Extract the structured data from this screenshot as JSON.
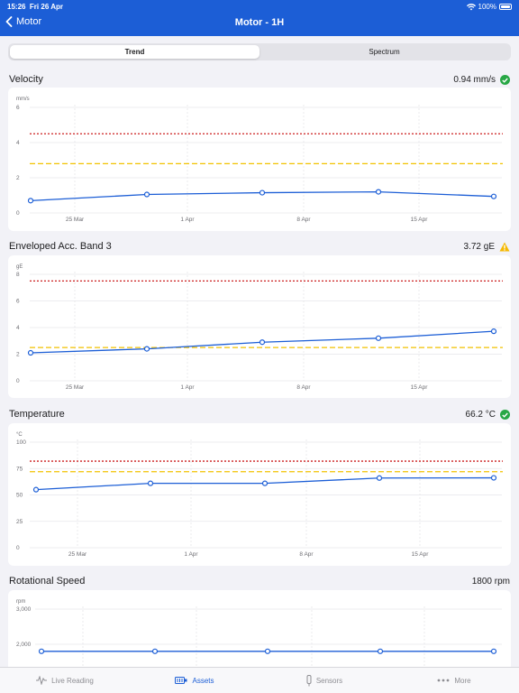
{
  "status_bar": {
    "time": "15:26",
    "date": "Fri 26 Apr",
    "battery": "100%"
  },
  "nav": {
    "back_label": "Motor",
    "title": "Motor - 1H"
  },
  "tabs": [
    {
      "label": "Trend",
      "active": true
    },
    {
      "label": "Spectrum",
      "active": false
    }
  ],
  "sections": {
    "velocity": {
      "title": "Velocity",
      "value": "0.94 mm/s",
      "status": "ok"
    },
    "enveloped": {
      "title": "Enveloped Acc. Band 3",
      "value": "3.72 gE",
      "status": "warning"
    },
    "temperature": {
      "title": "Temperature",
      "value": "66.2 °C",
      "status": "ok"
    },
    "rotational": {
      "title": "Rotational Speed",
      "value": "1800 rpm",
      "status": "none"
    }
  },
  "colors": {
    "line": "#1c5ed6",
    "alarm": "#cc1f1f",
    "alert": "#f2c200",
    "ok": "#28a745",
    "warning": "#f5b800"
  },
  "chart_data": [
    {
      "type": "line",
      "title": "Velocity",
      "ylabel": "mm/s",
      "ylim": [
        0,
        6
      ],
      "yticks": [
        "6",
        "4",
        "2",
        "0"
      ],
      "ytick_values": [
        6,
        4,
        2,
        0
      ],
      "x_tick_labels": [
        "25 Mar",
        "1 Apr",
        "8 Apr",
        "15 Apr"
      ],
      "series": [
        {
          "values": [
            0.7,
            1.05,
            1.15,
            1.2,
            0.94
          ]
        }
      ],
      "alarm_level": 4.5,
      "alert_level": 2.8
    },
    {
      "type": "line",
      "title": "Enveloped Acc. Band 3",
      "ylabel": "gE",
      "ylim": [
        0,
        8
      ],
      "yticks": [
        "8",
        "6",
        "4",
        "2",
        "0"
      ],
      "ytick_values": [
        8,
        6,
        4,
        2,
        0
      ],
      "x_tick_labels": [
        "25 Mar",
        "1 Apr",
        "8 Apr",
        "15 Apr"
      ],
      "series": [
        {
          "values": [
            2.1,
            2.4,
            2.9,
            3.2,
            3.72
          ]
        }
      ],
      "alarm_level": 7.5,
      "alert_level": 2.5
    },
    {
      "type": "line",
      "title": "Temperature",
      "ylabel": "°C",
      "ylim": [
        0,
        100
      ],
      "yticks": [
        "100",
        "75",
        "50",
        "25",
        "0"
      ],
      "ytick_values": [
        100,
        75,
        50,
        25,
        0
      ],
      "x_tick_labels": [
        "25 Mar",
        "1 Apr",
        "8 Apr",
        "15 Apr"
      ],
      "series": [
        {
          "values": [
            55,
            61,
            61,
            66,
            66.2
          ]
        }
      ],
      "alarm_level": 82,
      "alert_level": 72
    },
    {
      "type": "line",
      "title": "Rotational Speed",
      "ylabel": "rpm",
      "ylim": [
        1800,
        3000
      ],
      "yticks": [
        "3,000",
        "2,000"
      ],
      "ytick_values": [
        3000,
        2000
      ],
      "x_tick_labels": [],
      "series": [
        {
          "values": [
            1800,
            1800,
            1800,
            1800,
            1800
          ]
        }
      ]
    }
  ],
  "tabbar": [
    {
      "label": "Live Reading",
      "icon": "waveform-icon",
      "active": false
    },
    {
      "label": "Assets",
      "icon": "assets-icon",
      "active": true
    },
    {
      "label": "Sensors",
      "icon": "sensor-icon",
      "active": false
    },
    {
      "label": "More",
      "icon": "more-dots-icon",
      "active": false
    }
  ]
}
